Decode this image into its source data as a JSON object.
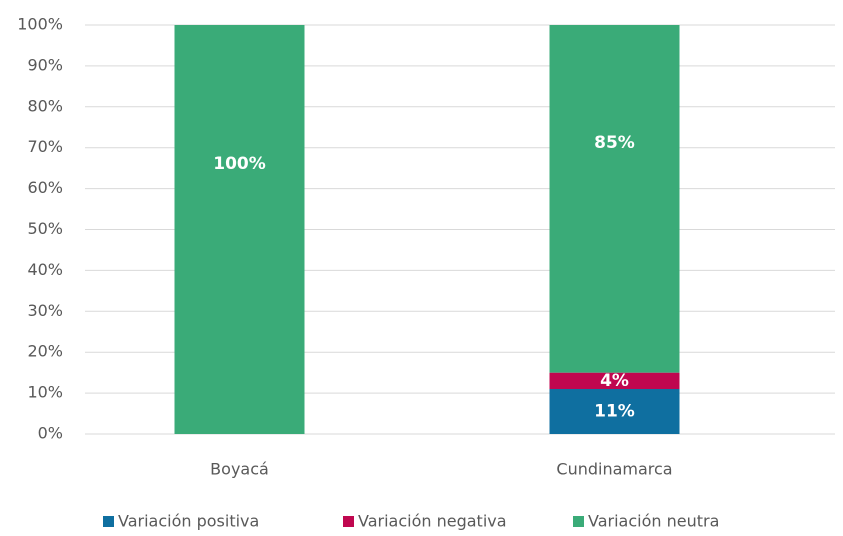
{
  "chart_data": {
    "type": "stacked_bar",
    "categories": [
      "Boyacá",
      "Cundinamarca"
    ],
    "series": [
      {
        "name": "Variación positiva",
        "color": "#0f6fa0",
        "values": [
          0,
          11
        ],
        "value_labels": [
          null,
          "11%"
        ]
      },
      {
        "name": "Variación negativa",
        "color": "#c0074f",
        "values": [
          0,
          4
        ],
        "value_labels": [
          null,
          "4%"
        ]
      },
      {
        "name": "Variación neutra",
        "color": "#3aab78",
        "values": [
          100,
          85
        ],
        "value_labels": [
          "100%",
          "85%"
        ]
      }
    ],
    "ylim": [
      0,
      100
    ],
    "yticks": [
      {
        "value": 0,
        "label": "0%"
      },
      {
        "value": 10,
        "label": "10%"
      },
      {
        "value": 20,
        "label": "20%"
      },
      {
        "value": 30,
        "label": "30%"
      },
      {
        "value": 40,
        "label": "40%"
      },
      {
        "value": 50,
        "label": "50%"
      },
      {
        "value": 60,
        "label": "60%"
      },
      {
        "value": 70,
        "label": "70%"
      },
      {
        "value": 80,
        "label": "80%"
      },
      {
        "value": 90,
        "label": "90%"
      },
      {
        "value": 100,
        "label": "100%"
      }
    ],
    "grid": true,
    "legend": "bottom"
  }
}
